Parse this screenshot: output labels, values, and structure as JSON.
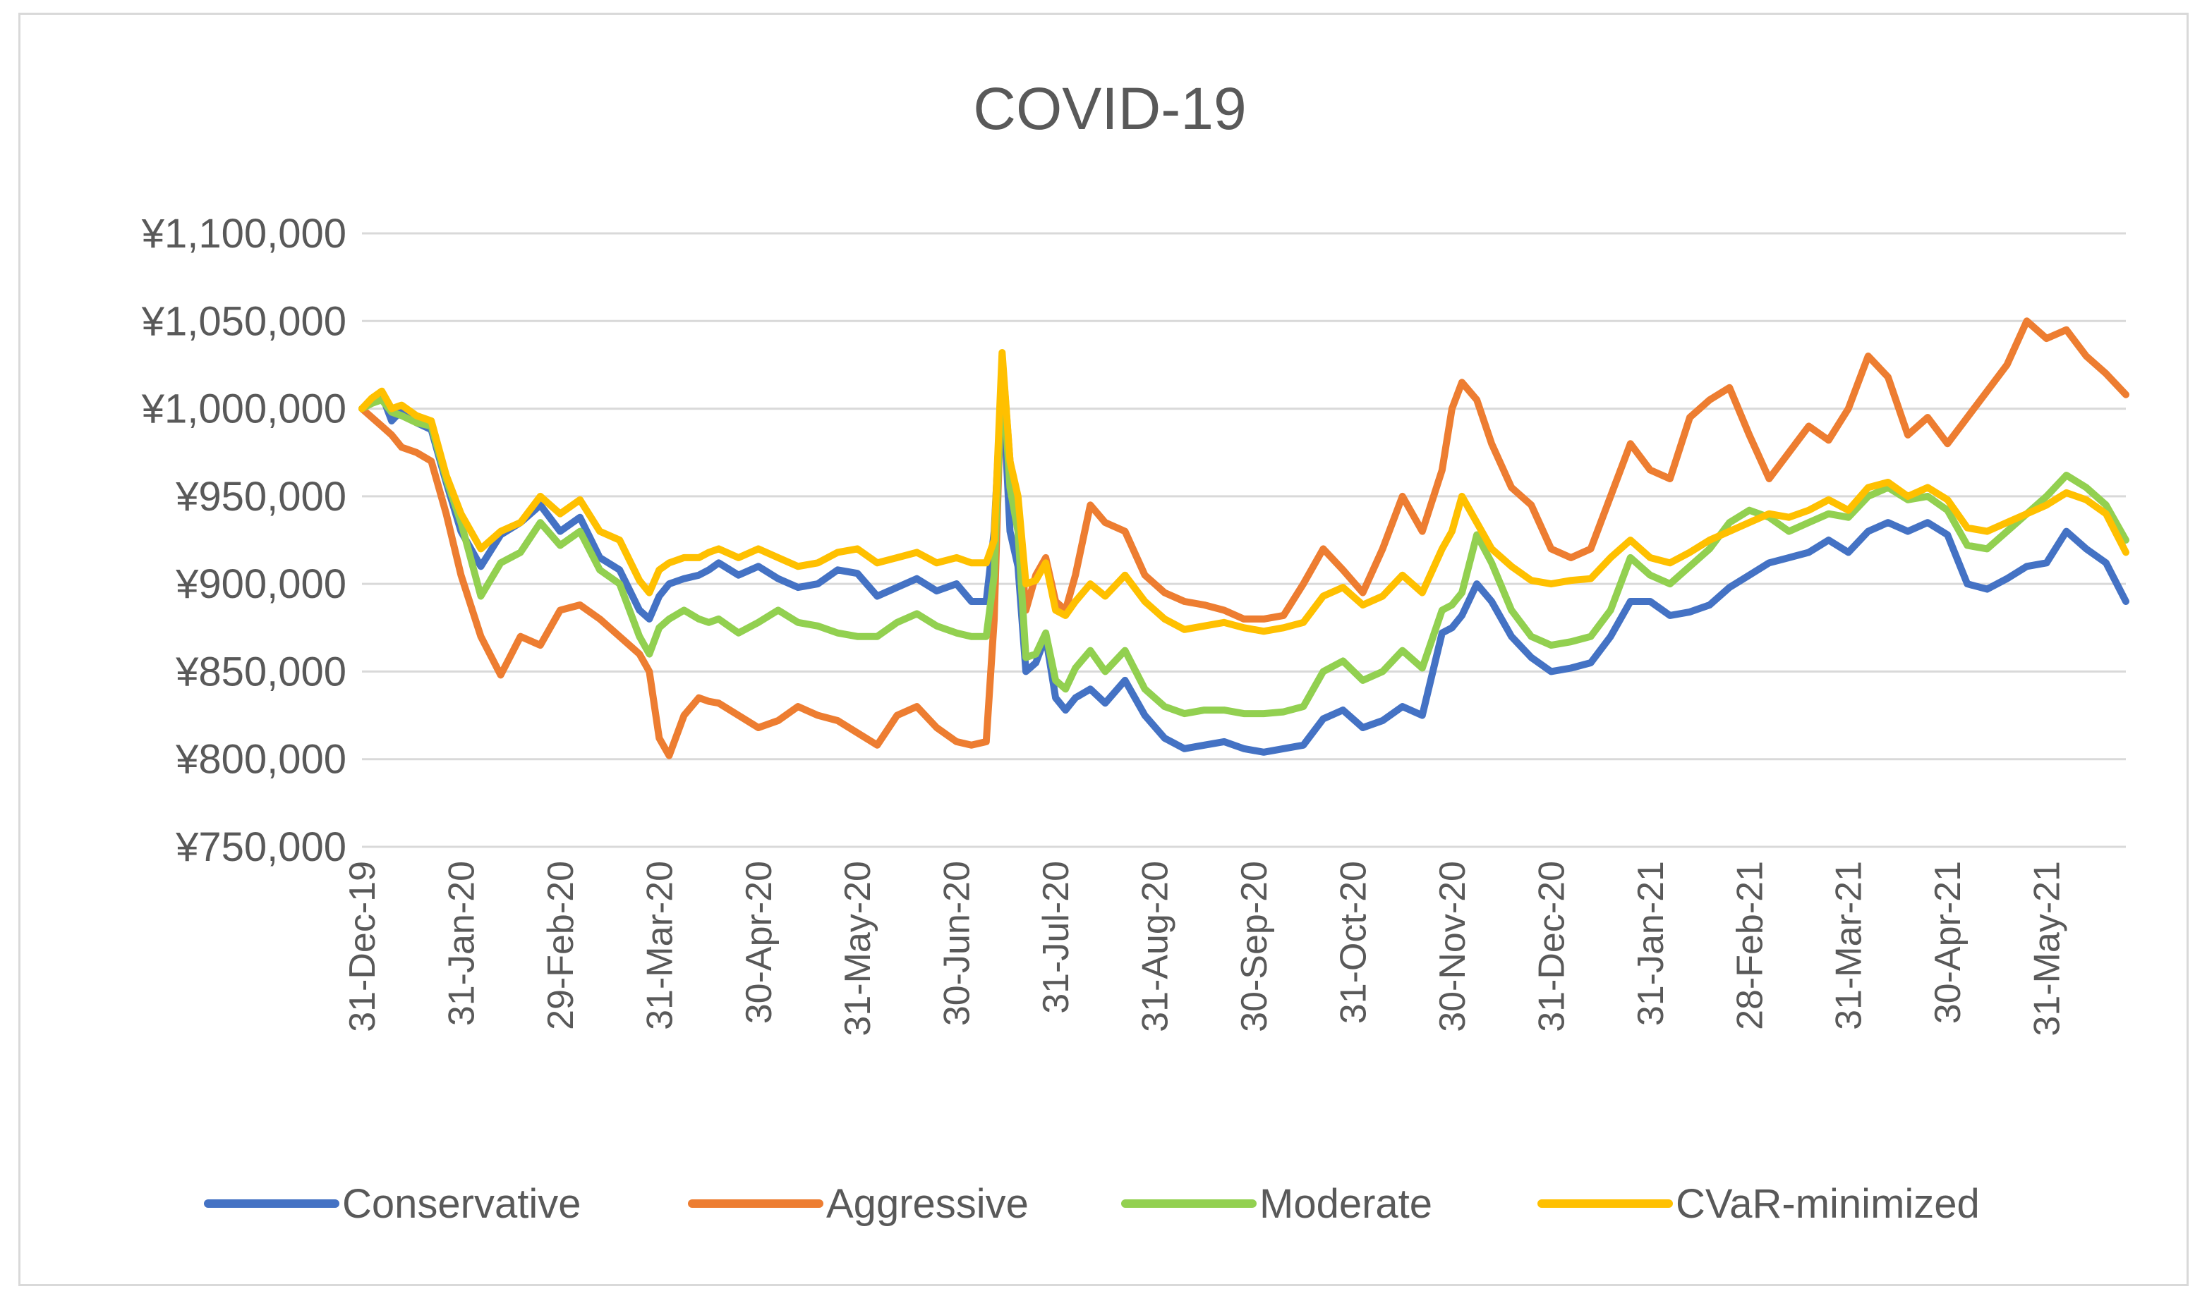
{
  "chart_data": {
    "type": "line",
    "title": "COVID-19",
    "xlabel": "",
    "ylabel": "",
    "ylim": [
      750000,
      1100000
    ],
    "y_ticks": [
      750000,
      800000,
      850000,
      900000,
      950000,
      1000000,
      1050000,
      1100000
    ],
    "y_tick_labels": [
      "¥750,000",
      "¥800,000",
      "¥850,000",
      "¥900,000",
      "¥950,000",
      "¥1,000,000",
      "¥1,050,000",
      "¥1,100,000"
    ],
    "x_tick_labels": [
      "31-Dec-19",
      "31-Jan-20",
      "29-Feb-20",
      "31-Mar-20",
      "30-Apr-20",
      "31-May-20",
      "30-Jun-20",
      "31-Jul-20",
      "31-Aug-20",
      "30-Sep-20",
      "31-Oct-20",
      "30-Nov-20",
      "31-Dec-20",
      "31-Jan-21",
      "28-Feb-21",
      "31-Mar-21",
      "30-Apr-21",
      "31-May-21"
    ],
    "grid": true,
    "legend_position": "bottom",
    "x_range": [
      0,
      17.8
    ],
    "x": [
      0,
      0.1,
      0.2,
      0.3,
      0.4,
      0.55,
      0.7,
      0.85,
      1.0,
      1.2,
      1.4,
      1.6,
      1.8,
      2.0,
      2.2,
      2.4,
      2.6,
      2.8,
      2.9,
      3.0,
      3.1,
      3.25,
      3.4,
      3.5,
      3.6,
      3.8,
      4.0,
      4.2,
      4.4,
      4.6,
      4.8,
      5.0,
      5.2,
      5.4,
      5.6,
      5.8,
      6.0,
      6.15,
      6.3,
      6.38,
      6.46,
      6.54,
      6.62,
      6.7,
      6.8,
      6.9,
      7.0,
      7.1,
      7.2,
      7.35,
      7.5,
      7.7,
      7.9,
      8.1,
      8.3,
      8.5,
      8.7,
      8.9,
      9.1,
      9.3,
      9.5,
      9.7,
      9.9,
      10.1,
      10.3,
      10.5,
      10.7,
      10.9,
      11.0,
      11.1,
      11.25,
      11.4,
      11.6,
      11.8,
      12.0,
      12.2,
      12.4,
      12.6,
      12.8,
      13.0,
      13.2,
      13.4,
      13.6,
      13.8,
      14.0,
      14.2,
      14.4,
      14.6,
      14.8,
      15.0,
      15.2,
      15.4,
      15.6,
      15.8,
      16.0,
      16.2,
      16.4,
      16.6,
      16.8,
      17.0,
      17.2,
      17.4,
      17.6,
      17.8
    ],
    "series": [
      {
        "name": "Conservative",
        "color": "#4472C4",
        "values": [
          1000000,
          1005000,
          1008000,
          993000,
          999000,
          992000,
          988000,
          958000,
          930000,
          910000,
          928000,
          935000,
          945000,
          930000,
          938000,
          915000,
          908000,
          885000,
          880000,
          893000,
          900000,
          903000,
          905000,
          908000,
          912000,
          905000,
          910000,
          903000,
          898000,
          900000,
          908000,
          906000,
          893000,
          898000,
          903000,
          896000,
          900000,
          890000,
          890000,
          930000,
          1020000,
          930000,
          910000,
          850000,
          855000,
          870000,
          835000,
          828000,
          835000,
          840000,
          832000,
          845000,
          825000,
          812000,
          806000,
          808000,
          810000,
          806000,
          804000,
          806000,
          808000,
          823000,
          828000,
          818000,
          822000,
          830000,
          825000,
          872000,
          875000,
          882000,
          900000,
          890000,
          870000,
          858000,
          850000,
          852000,
          855000,
          870000,
          890000,
          890000,
          882000,
          884000,
          888000,
          898000,
          905000,
          912000,
          915000,
          918000,
          925000,
          918000,
          930000,
          935000,
          930000,
          935000,
          928000,
          900000,
          897000,
          903000,
          910000,
          912000,
          930000,
          920000,
          912000,
          890000
        ]
      },
      {
        "name": "Aggressive",
        "color": "#ED7D31",
        "values": [
          1000000,
          995000,
          990000,
          985000,
          978000,
          975000,
          970000,
          940000,
          905000,
          870000,
          848000,
          870000,
          865000,
          885000,
          888000,
          880000,
          870000,
          860000,
          850000,
          812000,
          802000,
          825000,
          835000,
          833000,
          832000,
          825000,
          818000,
          822000,
          830000,
          825000,
          822000,
          815000,
          808000,
          825000,
          830000,
          818000,
          810000,
          808000,
          810000,
          880000,
          1030000,
          970000,
          940000,
          885000,
          905000,
          915000,
          890000,
          885000,
          905000,
          945000,
          935000,
          930000,
          905000,
          895000,
          890000,
          888000,
          885000,
          880000,
          880000,
          882000,
          900000,
          920000,
          908000,
          895000,
          920000,
          950000,
          930000,
          965000,
          1000000,
          1015000,
          1005000,
          980000,
          955000,
          945000,
          920000,
          915000,
          920000,
          950000,
          980000,
          965000,
          960000,
          995000,
          1005000,
          1012000,
          985000,
          960000,
          975000,
          990000,
          982000,
          1000000,
          1030000,
          1018000,
          985000,
          995000,
          980000,
          995000,
          1010000,
          1025000,
          1050000,
          1040000,
          1045000,
          1030000,
          1020000,
          1008000
        ]
      },
      {
        "name": "Moderate",
        "color": "#92D050",
        "values": [
          1000000,
          1003000,
          1005000,
          998000,
          996000,
          992000,
          990000,
          960000,
          935000,
          893000,
          912000,
          918000,
          935000,
          922000,
          930000,
          908000,
          900000,
          870000,
          860000,
          875000,
          880000,
          885000,
          880000,
          878000,
          880000,
          872000,
          878000,
          885000,
          878000,
          876000,
          872000,
          870000,
          870000,
          878000,
          883000,
          876000,
          872000,
          870000,
          870000,
          905000,
          1025000,
          955000,
          930000,
          858000,
          860000,
          872000,
          845000,
          840000,
          852000,
          862000,
          850000,
          862000,
          840000,
          830000,
          826000,
          828000,
          828000,
          826000,
          826000,
          827000,
          830000,
          850000,
          856000,
          845000,
          850000,
          862000,
          852000,
          885000,
          888000,
          895000,
          928000,
          912000,
          885000,
          870000,
          865000,
          867000,
          870000,
          885000,
          915000,
          905000,
          900000,
          910000,
          920000,
          935000,
          942000,
          938000,
          930000,
          935000,
          940000,
          938000,
          950000,
          955000,
          948000,
          950000,
          942000,
          922000,
          920000,
          930000,
          940000,
          950000,
          962000,
          955000,
          945000,
          925000
        ]
      },
      {
        "name": "CVaR-minimized",
        "color": "#FFC000",
        "values": [
          1000000,
          1006000,
          1010000,
          1000000,
          1002000,
          996000,
          993000,
          962000,
          940000,
          920000,
          930000,
          935000,
          950000,
          940000,
          948000,
          930000,
          925000,
          902000,
          895000,
          908000,
          912000,
          915000,
          915000,
          918000,
          920000,
          915000,
          920000,
          915000,
          910000,
          912000,
          918000,
          920000,
          912000,
          915000,
          918000,
          912000,
          915000,
          912000,
          912000,
          925000,
          1032000,
          970000,
          950000,
          900000,
          902000,
          912000,
          885000,
          882000,
          890000,
          900000,
          893000,
          905000,
          890000,
          880000,
          874000,
          876000,
          878000,
          875000,
          873000,
          875000,
          878000,
          893000,
          898000,
          888000,
          893000,
          905000,
          895000,
          920000,
          930000,
          950000,
          935000,
          920000,
          910000,
          902000,
          900000,
          902000,
          903000,
          915000,
          925000,
          915000,
          912000,
          918000,
          925000,
          930000,
          935000,
          940000,
          938000,
          942000,
          948000,
          942000,
          955000,
          958000,
          950000,
          955000,
          948000,
          932000,
          930000,
          935000,
          940000,
          945000,
          952000,
          948000,
          940000,
          918000
        ]
      }
    ]
  }
}
